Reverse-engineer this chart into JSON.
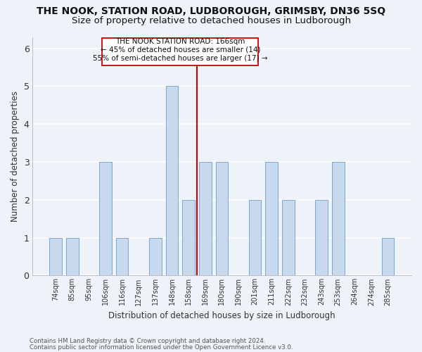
{
  "title1": "THE NOOK, STATION ROAD, LUDBOROUGH, GRIMSBY, DN36 5SQ",
  "title2": "Size of property relative to detached houses in Ludborough",
  "xlabel": "Distribution of detached houses by size in Ludborough",
  "ylabel": "Number of detached properties",
  "categories": [
    "74sqm",
    "85sqm",
    "95sqm",
    "106sqm",
    "116sqm",
    "127sqm",
    "137sqm",
    "148sqm",
    "158sqm",
    "169sqm",
    "180sqm",
    "190sqm",
    "201sqm",
    "211sqm",
    "222sqm",
    "232sqm",
    "243sqm",
    "253sqm",
    "264sqm",
    "274sqm",
    "285sqm"
  ],
  "values": [
    1,
    1,
    0,
    3,
    1,
    0,
    1,
    5,
    2,
    3,
    3,
    0,
    2,
    3,
    2,
    0,
    2,
    3,
    0,
    0,
    1
  ],
  "bar_color": "#c9d9ed",
  "bar_edge_color": "#6a9eca",
  "highlight_index": 8,
  "highlight_color_line": "#cc0000",
  "property_label": "THE NOOK STATION ROAD: 166sqm",
  "annotation_line1": "← 45% of detached houses are smaller (14)",
  "annotation_line2": "55% of semi-detached houses are larger (17) →",
  "ylim": [
    0,
    6.3
  ],
  "yticks": [
    0,
    1,
    2,
    3,
    4,
    5,
    6
  ],
  "footnote1": "Contains HM Land Registry data © Crown copyright and database right 2024.",
  "footnote2": "Contains public sector information licensed under the Open Government Licence v3.0.",
  "bg_color": "#eef2f9",
  "grid_color": "#ffffff",
  "axis_label_color": "#333333",
  "title_fontsize": 10,
  "subtitle_fontsize": 9.5,
  "bar_width": 0.75
}
